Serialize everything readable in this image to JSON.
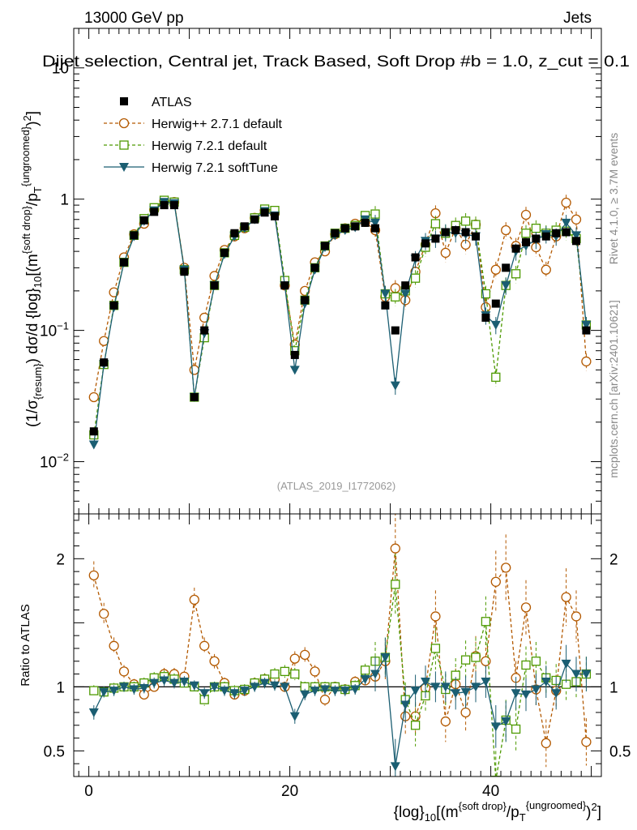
{
  "header": {
    "energy": "13000 GeV pp",
    "category": "Jets",
    "selection": "Dijet selection, Central jet, Track Based, Soft Drop #b = 1.0, z_cut = 0.1",
    "analysis_id": "(ATLAS_2019_I1772062)",
    "rivet": "Rivet 4.1.0, ≥ 3.7M events",
    "website": "mcplots.cern.ch [arXiv:2401.10621]"
  },
  "colors": {
    "atlas": "#000000",
    "herwigpp": "#b35900",
    "herwig721": "#4d9900",
    "softtune": "#1b5e72"
  },
  "chart_data": [
    {
      "type": "scatter",
      "panel": "main",
      "yscale": "log",
      "ylabel": "(1/σ_{resum}) dσ/d {log}_{10}[(m^{soft drop}/p_T^{ungroomed})^2]",
      "ylim": [
        0.004,
        20
      ],
      "xlim": [
        -1.5,
        51
      ],
      "yticks": [
        "10^{-2}",
        "10^{-1}",
        "1",
        "10"
      ],
      "x": [
        0.5,
        1.5,
        2.5,
        3.5,
        4.5,
        5.5,
        6.5,
        7.5,
        8.5,
        9.5,
        10.5,
        11.5,
        12.5,
        13.5,
        14.5,
        15.5,
        16.5,
        17.5,
        18.5,
        19.5,
        20.5,
        21.5,
        22.5,
        23.5,
        24.5,
        25.5,
        26.5,
        27.5,
        28.5,
        29.5,
        30.5,
        31.5,
        32.5,
        33.5,
        34.5,
        35.5,
        36.5,
        37.5,
        38.5,
        39.5,
        40.5,
        41.5,
        42.5,
        43.5,
        44.5,
        45.5,
        46.5,
        47.5,
        48.5,
        49.5
      ],
      "series": [
        {
          "name": "ATLAS",
          "marker": "filled-square",
          "values": [
            0.017,
            0.057,
            0.155,
            0.33,
            0.53,
            0.69,
            0.8,
            0.9,
            0.9,
            0.28,
            0.031,
            0.1,
            0.22,
            0.39,
            0.55,
            0.62,
            0.7,
            0.79,
            0.74,
            0.22,
            0.065,
            0.17,
            0.3,
            0.44,
            0.55,
            0.6,
            0.62,
            0.66,
            0.6,
            0.155,
            0.1,
            0.22,
            0.36,
            0.46,
            0.5,
            0.56,
            0.58,
            0.56,
            0.52,
            0.125,
            0.16,
            0.3,
            0.42,
            0.47,
            0.5,
            0.52,
            0.55,
            0.56,
            0.48,
            0.1
          ]
        },
        {
          "name": "Herwig++ 2.7.1 default",
          "marker": "open-circle",
          "style": "dashed",
          "values": [
            0.031,
            0.083,
            0.195,
            0.36,
            0.54,
            0.65,
            0.83,
            0.97,
            0.95,
            0.3,
            0.05,
            0.125,
            0.26,
            0.41,
            0.52,
            0.6,
            0.72,
            0.82,
            0.78,
            0.22,
            0.078,
            0.2,
            0.33,
            0.4,
            0.54,
            0.6,
            0.65,
            0.67,
            0.58,
            0.18,
            0.21,
            0.17,
            0.28,
            0.45,
            0.78,
            0.39,
            0.6,
            0.45,
            0.64,
            0.15,
            0.29,
            0.58,
            0.44,
            0.76,
            0.43,
            0.29,
            0.52,
            0.94,
            0.7,
            0.058
          ]
        },
        {
          "name": "Herwig 7.2.1 default",
          "marker": "open-square",
          "style": "dashed",
          "values": [
            0.016,
            0.055,
            0.155,
            0.33,
            0.53,
            0.71,
            0.86,
            0.98,
            0.95,
            0.29,
            0.031,
            0.088,
            0.22,
            0.39,
            0.53,
            0.61,
            0.72,
            0.84,
            0.82,
            0.24,
            0.07,
            0.17,
            0.3,
            0.44,
            0.55,
            0.6,
            0.63,
            0.75,
            0.77,
            0.19,
            0.18,
            0.2,
            0.25,
            0.43,
            0.65,
            0.55,
            0.63,
            0.68,
            0.64,
            0.19,
            0.044,
            0.22,
            0.27,
            0.55,
            0.6,
            0.55,
            0.58,
            0.57,
            0.5,
            0.11
          ]
        },
        {
          "name": "Herwig 7.2.1 softTune",
          "marker": "filled-triangle-down",
          "style": "solid",
          "values": [
            0.0135,
            0.055,
            0.15,
            0.33,
            0.52,
            0.68,
            0.82,
            0.95,
            0.93,
            0.29,
            0.031,
            0.095,
            0.22,
            0.38,
            0.52,
            0.6,
            0.7,
            0.81,
            0.75,
            0.22,
            0.05,
            0.16,
            0.29,
            0.43,
            0.53,
            0.58,
            0.61,
            0.7,
            0.66,
            0.19,
            0.038,
            0.19,
            0.35,
            0.48,
            0.5,
            0.56,
            0.55,
            0.54,
            0.52,
            0.13,
            0.11,
            0.22,
            0.4,
            0.44,
            0.49,
            0.54,
            0.52,
            0.66,
            0.53,
            0.11
          ]
        }
      ]
    },
    {
      "type": "scatter",
      "panel": "ratio",
      "ylabel": "Ratio to ATLAS",
      "xlabel": "{log}_{10}[(m^{soft drop}/p_T^{ungroomed})^2]",
      "ylim": [
        0.3,
        2.35
      ],
      "xlim": [
        -1.5,
        51
      ],
      "xticks": [
        "0",
        "20",
        "40"
      ],
      "yticks": [
        "0.5",
        "1",
        "2"
      ],
      "x": [
        0.5,
        1.5,
        2.5,
        3.5,
        4.5,
        5.5,
        6.5,
        7.5,
        8.5,
        9.5,
        10.5,
        11.5,
        12.5,
        13.5,
        14.5,
        15.5,
        16.5,
        17.5,
        18.5,
        19.5,
        20.5,
        21.5,
        22.5,
        23.5,
        24.5,
        25.5,
        26.5,
        27.5,
        28.5,
        29.5,
        30.5,
        31.5,
        32.5,
        33.5,
        34.5,
        35.5,
        36.5,
        37.5,
        38.5,
        39.5,
        40.5,
        41.5,
        42.5,
        43.5,
        44.5,
        45.5,
        46.5,
        47.5,
        48.5,
        49.5
      ],
      "reference": 1,
      "series": [
        {
          "name": "Herwig++ 2.7.1 default",
          "values": [
            1.87,
            1.57,
            1.32,
            1.12,
            1.02,
            0.94,
            1.0,
            1.1,
            1.1,
            1.08,
            1.68,
            1.32,
            1.2,
            1.03,
            0.94,
            0.97,
            1.03,
            1.06,
            1.06,
            1.0,
            1.22,
            1.25,
            1.12,
            0.9,
            1.0,
            0.98,
            1.04,
            1.05,
            1.08,
            1.2,
            2.08,
            0.77,
            0.77,
            0.99,
            1.55,
            0.73,
            1.02,
            0.8,
            1.24,
            1.2,
            1.82,
            1.93,
            1.07,
            1.62,
            0.98,
            0.56,
            0.97,
            1.7,
            1.55,
            0.57
          ]
        },
        {
          "name": "Herwig 7.2.1 default",
          "values": [
            0.97,
            0.96,
            0.99,
            1.0,
            1.0,
            1.03,
            1.07,
            1.08,
            1.06,
            1.03,
            1.0,
            0.9,
            1.0,
            1.0,
            0.97,
            0.98,
            1.03,
            1.06,
            1.1,
            1.12,
            1.1,
            1.0,
            1.0,
            1.0,
            1.0,
            0.98,
            1.01,
            1.13,
            1.2,
            1.23,
            1.8,
            0.9,
            0.7,
            0.93,
            1.3,
            0.98,
            1.09,
            1.21,
            1.23,
            1.51,
            0.27,
            0.74,
            0.67,
            1.17,
            1.2,
            1.07,
            1.05,
            1.02,
            1.04,
            1.1
          ]
        },
        {
          "name": "Herwig 7.2.1 softTune",
          "values": [
            0.8,
            0.96,
            0.97,
            1.0,
            0.98,
            0.99,
            1.03,
            1.05,
            1.03,
            1.04,
            1.01,
            0.95,
            1.0,
            0.97,
            0.95,
            0.97,
            1.0,
            1.03,
            1.01,
            1.0,
            0.77,
            0.94,
            0.97,
            0.98,
            0.97,
            0.97,
            0.98,
            1.06,
            1.1,
            1.23,
            0.38,
            0.86,
            0.97,
            1.04,
            1.0,
            1.0,
            0.95,
            0.96,
            1.0,
            1.04,
            0.69,
            0.73,
            0.95,
            0.94,
            0.98,
            1.04,
            0.95,
            1.18,
            1.1,
            1.1
          ]
        }
      ]
    }
  ]
}
